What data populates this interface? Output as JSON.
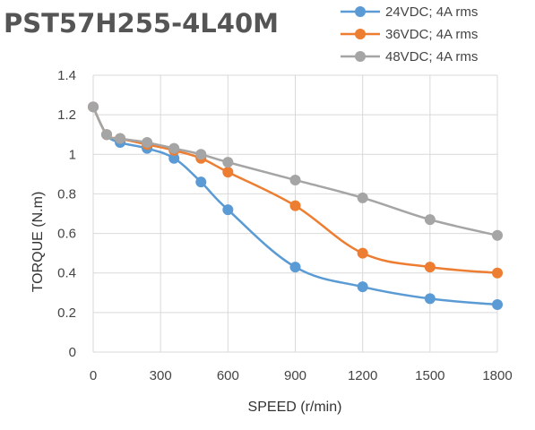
{
  "chart_data": {
    "type": "line",
    "title": "PST57H255-4L40M",
    "xlabel": "SPEED (r/min)",
    "ylabel": "TORQUE (N.m)",
    "xlim": [
      0,
      1800
    ],
    "ylim": [
      0,
      1.4
    ],
    "xticks": [
      0,
      300,
      600,
      900,
      1200,
      1500,
      1800
    ],
    "yticks": [
      0,
      0.2,
      0.4,
      0.6,
      0.8,
      1,
      1.2,
      1.4
    ],
    "xtick_labels": [
      "0",
      "300",
      "600",
      "900",
      "1200",
      "1500",
      "1800"
    ],
    "ytick_labels": [
      "0",
      "0.2",
      "0.4",
      "0.6",
      "0.8",
      "1",
      "1.2",
      "1.4"
    ],
    "grid": true,
    "legend_position": "top-right",
    "series": [
      {
        "name": "24VDC; 4A rms",
        "color": "#5b9bd5",
        "x": [
          0,
          60,
          120,
          240,
          360,
          480,
          600,
          900,
          1200,
          1500,
          1800
        ],
        "y": [
          1.24,
          1.1,
          1.06,
          1.03,
          0.98,
          0.86,
          0.72,
          0.43,
          0.33,
          0.27,
          0.24
        ]
      },
      {
        "name": "36VDC; 4A rms",
        "color": "#ed7d31",
        "x": [
          0,
          60,
          120,
          240,
          360,
          480,
          600,
          900,
          1200,
          1500,
          1800
        ],
        "y": [
          1.24,
          1.1,
          1.08,
          1.05,
          1.02,
          0.98,
          0.91,
          0.74,
          0.5,
          0.43,
          0.4
        ]
      },
      {
        "name": "48VDC; 4A rms",
        "color": "#a5a5a5",
        "x": [
          0,
          60,
          120,
          240,
          360,
          480,
          600,
          900,
          1200,
          1500,
          1800
        ],
        "y": [
          1.24,
          1.1,
          1.08,
          1.06,
          1.03,
          1.0,
          0.96,
          0.87,
          0.78,
          0.67,
          0.59
        ]
      }
    ]
  }
}
